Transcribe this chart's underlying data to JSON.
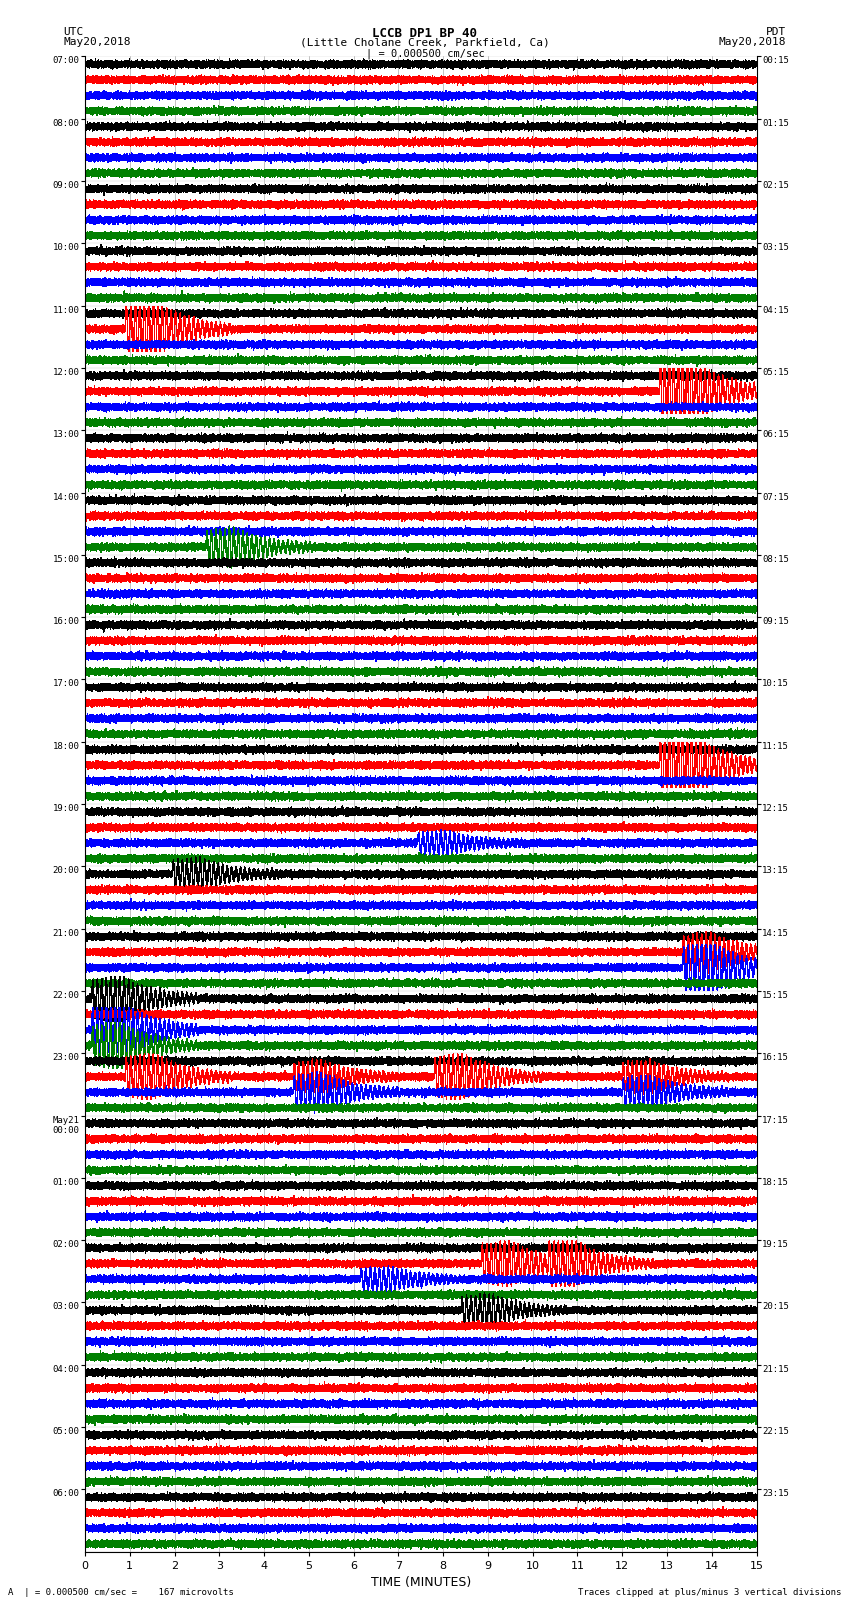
{
  "title_line1": "LCCB DP1 BP 40",
  "title_line2": "(Little Cholane Creek, Parkfield, Ca)",
  "scale_label": "| = 0.000500 cm/sec",
  "left_timezone": "UTC",
  "right_timezone": "PDT",
  "left_date": "May20,2018",
  "right_date": "May20,2018",
  "xlabel": "TIME (MINUTES)",
  "bottom_left": "A  | = 0.000500 cm/sec =    167 microvolts",
  "bottom_right": "Traces clipped at plus/minus 3 vertical divisions",
  "utc_labels": [
    "07:00",
    "08:00",
    "09:00",
    "10:00",
    "11:00",
    "12:00",
    "13:00",
    "14:00",
    "15:00",
    "16:00",
    "17:00",
    "18:00",
    "19:00",
    "20:00",
    "21:00",
    "22:00",
    "23:00",
    "May21\n00:00",
    "01:00",
    "02:00",
    "03:00",
    "04:00",
    "05:00",
    "06:00"
  ],
  "pdt_labels": [
    "00:15",
    "01:15",
    "02:15",
    "03:15",
    "04:15",
    "05:15",
    "06:15",
    "07:15",
    "08:15",
    "09:15",
    "10:15",
    "11:15",
    "12:15",
    "13:15",
    "14:15",
    "15:15",
    "16:15",
    "17:15",
    "18:15",
    "19:15",
    "20:15",
    "21:15",
    "22:15",
    "23:15"
  ],
  "n_rows": 24,
  "n_traces_per_row": 4,
  "trace_colors": [
    "black",
    "red",
    "blue",
    "green"
  ],
  "bg_color": "white",
  "minutes": 15,
  "sample_rate": 40,
  "xlim": [
    0,
    15
  ],
  "xticks": [
    0,
    1,
    2,
    3,
    4,
    5,
    6,
    7,
    8,
    9,
    10,
    11,
    12,
    13,
    14,
    15
  ],
  "events": [
    {
      "row": 4,
      "trace": 1,
      "positions": [
        0.1
      ],
      "amps": [
        4.0
      ]
    },
    {
      "row": 5,
      "trace": 1,
      "positions": [
        0.895
      ],
      "amps": [
        5.0
      ]
    },
    {
      "row": 7,
      "trace": 3,
      "positions": [
        0.22
      ],
      "amps": [
        2.5
      ]
    },
    {
      "row": 11,
      "trace": 1,
      "positions": [
        0.895
      ],
      "amps": [
        5.0
      ]
    },
    {
      "row": 12,
      "trace": 2,
      "positions": [
        0.535
      ],
      "amps": [
        1.5
      ]
    },
    {
      "row": 14,
      "trace": 1,
      "positions": [
        0.93
      ],
      "amps": [
        2.5
      ]
    },
    {
      "row": 14,
      "trace": 2,
      "positions": [
        0.93
      ],
      "amps": [
        3.5
      ]
    },
    {
      "row": 15,
      "trace": 0,
      "positions": [
        0.05
      ],
      "amps": [
        3.0
      ]
    },
    {
      "row": 15,
      "trace": 2,
      "positions": [
        0.05
      ],
      "amps": [
        4.0
      ]
    },
    {
      "row": 15,
      "trace": 3,
      "positions": [
        0.05
      ],
      "amps": [
        3.0
      ]
    },
    {
      "row": 16,
      "trace": 1,
      "positions": [
        0.1,
        0.35,
        0.56,
        0.84
      ],
      "amps": [
        3.0,
        2.0,
        3.0,
        2.0
      ]
    },
    {
      "row": 16,
      "trace": 2,
      "positions": [
        0.35,
        0.84
      ],
      "amps": [
        2.5,
        2.0
      ]
    },
    {
      "row": 19,
      "trace": 1,
      "positions": [
        0.63,
        0.73
      ],
      "amps": [
        3.0,
        2.5
      ]
    },
    {
      "row": 19,
      "trace": 2,
      "positions": [
        0.45
      ],
      "amps": [
        1.5
      ]
    },
    {
      "row": 20,
      "trace": 0,
      "positions": [
        0.6
      ],
      "amps": [
        2.0
      ]
    },
    {
      "row": 13,
      "trace": 0,
      "positions": [
        0.17
      ],
      "amps": [
        2.0
      ]
    }
  ]
}
